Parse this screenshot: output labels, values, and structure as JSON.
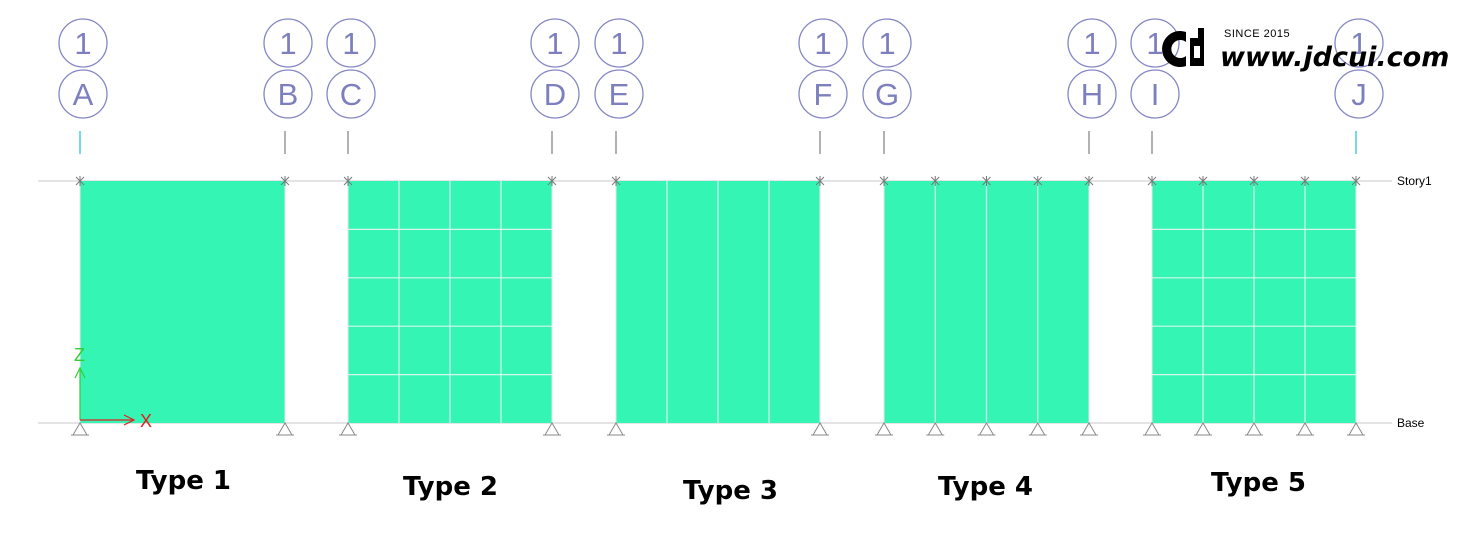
{
  "grid_bubbles": [
    {
      "number": "1",
      "letter": "A"
    },
    {
      "number": "1",
      "letter": "B"
    },
    {
      "number": "1",
      "letter": "C"
    },
    {
      "number": "1",
      "letter": "D"
    },
    {
      "number": "1",
      "letter": "E"
    },
    {
      "number": "1",
      "letter": "F"
    },
    {
      "number": "1",
      "letter": "G"
    },
    {
      "number": "1",
      "letter": "H"
    },
    {
      "number": "1",
      "letter": "I"
    },
    {
      "number": "1",
      "letter": "J"
    }
  ],
  "levels": {
    "top": "Story1",
    "bottom": "Base"
  },
  "axes": {
    "vertical": "Z",
    "horizontal": "X"
  },
  "wall_types": [
    {
      "label": "Type 1",
      "mesh_columns": 1,
      "mesh_rows": 1
    },
    {
      "label": "Type 2",
      "mesh_columns": 4,
      "mesh_rows": 5
    },
    {
      "label": "Type 3",
      "mesh_columns": 4,
      "mesh_rows": 1
    },
    {
      "label": "Type 4",
      "mesh_columns": 4,
      "mesh_rows": 1
    },
    {
      "label": "Type 5",
      "mesh_columns": 4,
      "mesh_rows": 5
    }
  ],
  "watermark": {
    "since": "SINCE 2015",
    "url": "www.jdcui.com"
  },
  "colors": {
    "wall_fill": "#35f5b5",
    "mesh_line": "#d6f6ec",
    "bubble": "#8486c4",
    "frame_line": "#c8c8c8",
    "axis_z": "#33cc33",
    "axis_x": "#e02020",
    "grid_line": "#2ec4dd"
  }
}
